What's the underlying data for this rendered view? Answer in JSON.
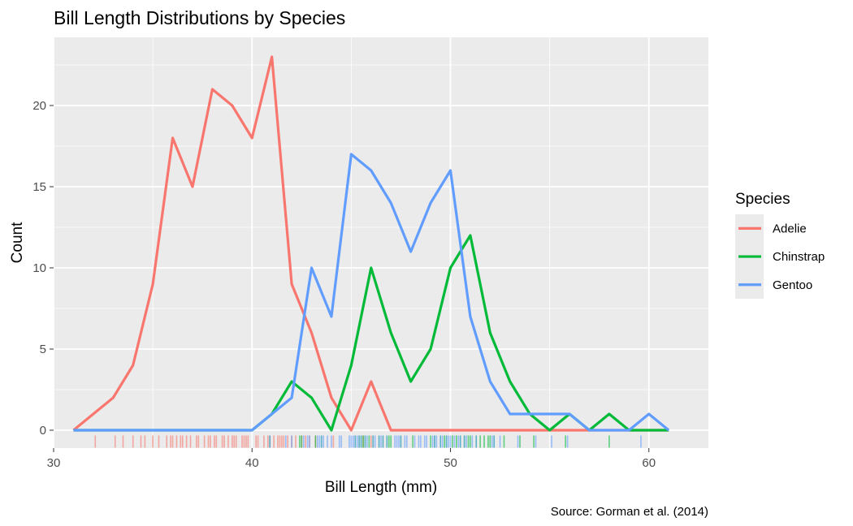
{
  "chart_data": {
    "type": "line",
    "title": "Bill Length Distributions by Species",
    "xlabel": "Bill Length (mm)",
    "ylabel": "Count",
    "caption": "Source: Gorman et al. (2014)",
    "xlim": [
      30,
      63
    ],
    "ylim": [
      -1.1,
      24.2
    ],
    "x_ticks": [
      30,
      40,
      50,
      60
    ],
    "y_ticks": [
      0,
      5,
      10,
      15,
      20
    ],
    "grid": true,
    "legend": {
      "title": "Species",
      "position": "right"
    },
    "series": [
      {
        "name": "Adelie",
        "color": "#F8766D",
        "x": [
          31,
          32,
          33,
          34,
          35,
          36,
          37,
          38,
          39,
          40,
          41,
          42,
          43,
          44,
          45,
          46,
          47,
          48,
          49,
          50,
          51,
          52,
          53,
          54,
          55,
          56,
          57,
          58,
          59,
          60,
          61
        ],
        "values": [
          0,
          1,
          2,
          4,
          9,
          18,
          15,
          21,
          20,
          18,
          23,
          9,
          6,
          2,
          0,
          3,
          0,
          0,
          0,
          0,
          0,
          0,
          0,
          0,
          0,
          0,
          0,
          0,
          0,
          0,
          0
        ],
        "rug": [
          32.1,
          33.1,
          33.5,
          34.0,
          34.4,
          34.6,
          35.0,
          35.3,
          35.7,
          35.9,
          36.0,
          36.2,
          36.4,
          36.5,
          36.7,
          36.9,
          37.2,
          37.3,
          37.6,
          37.8,
          37.9,
          38.1,
          38.2,
          38.5,
          38.6,
          38.8,
          39.0,
          39.1,
          39.2,
          39.5,
          39.6,
          39.7,
          39.8,
          40.2,
          40.3,
          40.6,
          40.8,
          40.9,
          41.1,
          41.3,
          41.4,
          41.5,
          41.6,
          41.8,
          42.0,
          42.2,
          42.5,
          42.7,
          42.9,
          43.2,
          44.1,
          45.6,
          46.0
        ]
      },
      {
        "name": "Chinstrap",
        "color": "#00BA38",
        "x": [
          31,
          32,
          33,
          34,
          35,
          36,
          37,
          38,
          39,
          40,
          41,
          42,
          43,
          44,
          45,
          46,
          47,
          48,
          49,
          50,
          51,
          52,
          53,
          54,
          55,
          56,
          57,
          58,
          59,
          60,
          61
        ],
        "values": [
          0,
          0,
          0,
          0,
          0,
          0,
          0,
          0,
          0,
          0,
          1,
          3,
          2,
          0,
          4,
          10,
          6,
          3,
          5,
          10,
          12,
          6,
          3,
          1,
          0,
          1,
          0,
          1,
          0,
          0,
          0
        ],
        "rug": [
          40.9,
          42.4,
          42.5,
          43.2,
          43.5,
          45.2,
          45.4,
          45.5,
          45.6,
          45.7,
          45.9,
          46.1,
          46.4,
          46.6,
          46.8,
          46.9,
          47.0,
          47.5,
          48.1,
          49.0,
          49.2,
          49.5,
          49.7,
          49.8,
          50.1,
          50.3,
          50.5,
          50.7,
          50.9,
          51.0,
          51.3,
          51.5,
          51.7,
          51.9,
          52.0,
          52.2,
          52.7,
          53.5,
          54.2,
          55.8,
          58.0
        ]
      },
      {
        "name": "Gentoo",
        "color": "#619CFF",
        "x": [
          31,
          32,
          33,
          34,
          35,
          36,
          37,
          38,
          39,
          40,
          41,
          42,
          43,
          44,
          45,
          46,
          47,
          48,
          49,
          50,
          51,
          52,
          53,
          54,
          55,
          56,
          57,
          58,
          59,
          60,
          61
        ],
        "values": [
          0,
          0,
          0,
          0,
          0,
          0,
          0,
          0,
          0,
          0,
          1,
          2,
          10,
          7,
          17,
          16,
          14,
          11,
          14,
          16,
          7,
          3,
          1,
          1,
          1,
          1,
          0,
          0,
          0,
          1,
          0
        ],
        "rug": [
          40.9,
          41.7,
          42.0,
          42.6,
          42.8,
          42.9,
          43.3,
          43.4,
          43.5,
          43.6,
          43.8,
          44.0,
          44.4,
          44.5,
          44.9,
          45.0,
          45.1,
          45.2,
          45.3,
          45.4,
          45.5,
          45.7,
          45.8,
          46.1,
          46.2,
          46.4,
          46.5,
          46.6,
          46.8,
          47.2,
          47.3,
          47.4,
          47.5,
          47.7,
          47.8,
          48.2,
          48.4,
          48.5,
          48.7,
          48.8,
          49.1,
          49.2,
          49.3,
          49.5,
          49.6,
          49.8,
          49.9,
          50.0,
          50.2,
          50.4,
          50.5,
          50.7,
          50.8,
          51.1,
          51.3,
          52.1,
          52.2,
          52.5,
          53.4,
          54.3,
          55.1,
          55.9,
          59.6
        ]
      }
    ]
  }
}
